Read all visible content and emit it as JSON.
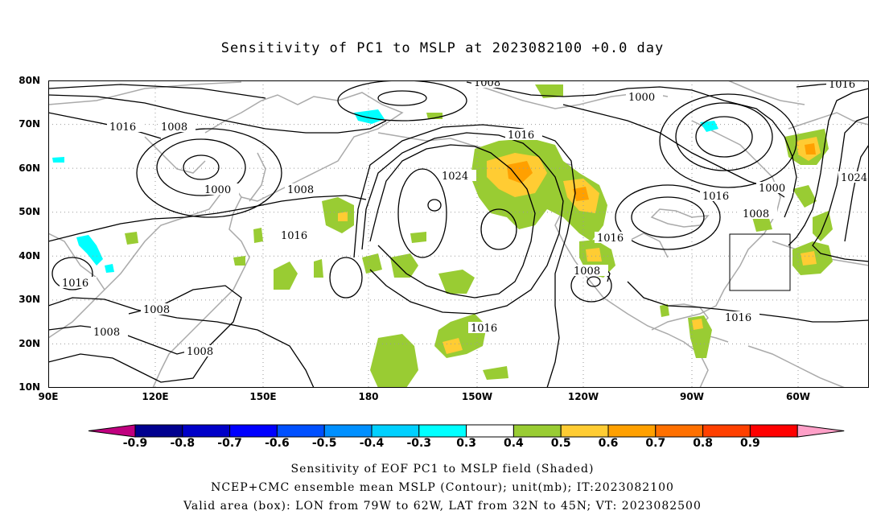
{
  "title": "Sensitivity of PC1 to MSLP at 2023082100 +0.0 day",
  "lat_labels": [
    "80N",
    "70N",
    "60N",
    "50N",
    "40N",
    "30N",
    "20N",
    "10N"
  ],
  "lon_labels": [
    "90E",
    "120E",
    "150E",
    "180",
    "150W",
    "120W",
    "90W",
    "60W"
  ],
  "contour_labels": [
    "1008",
    "1016",
    "1000",
    "1016",
    "1008",
    "1000",
    "1008",
    "1016",
    "1016",
    "1024",
    "1016",
    "1016",
    "1000",
    "1008",
    "1016",
    "1008",
    "1024",
    "1016",
    "1008",
    "1016",
    "1008",
    "1008",
    "1016"
  ],
  "colorbar": {
    "labels": [
      "-0.9",
      "-0.8",
      "-0.7",
      "-0.6",
      "-0.5",
      "-0.4",
      "-0.3",
      "0.3",
      "0.4",
      "0.5",
      "0.6",
      "0.7",
      "0.8",
      "0.9"
    ],
    "colors": [
      "#c0007f",
      "#00008f",
      "#0000c8",
      "#0000ff",
      "#0050ff",
      "#0090ff",
      "#00d0ff",
      "#00ffff",
      "#ffffff",
      "#99cc33",
      "#ffcc33",
      "#ffa000",
      "#ff7000",
      "#ff4000",
      "#ff0000",
      "#ffa0c8"
    ]
  },
  "shading_colors": {
    "green": "#99cc33",
    "yellow": "#ffcc33",
    "orange": "#ffa000",
    "cyan": "#00ffff",
    "coastline": "#aaaaaa"
  },
  "footer": {
    "line1": "Sensitivity of EOF PC1 to MSLP field (Shaded)",
    "line2": "NCEP+CMC ensemble mean MSLP (Contour); unit(mb); IT:2023082100",
    "line3": "Valid area (box): LON from 79W to 62W, LAT from 32N to 45N; VT: 2023082500"
  }
}
